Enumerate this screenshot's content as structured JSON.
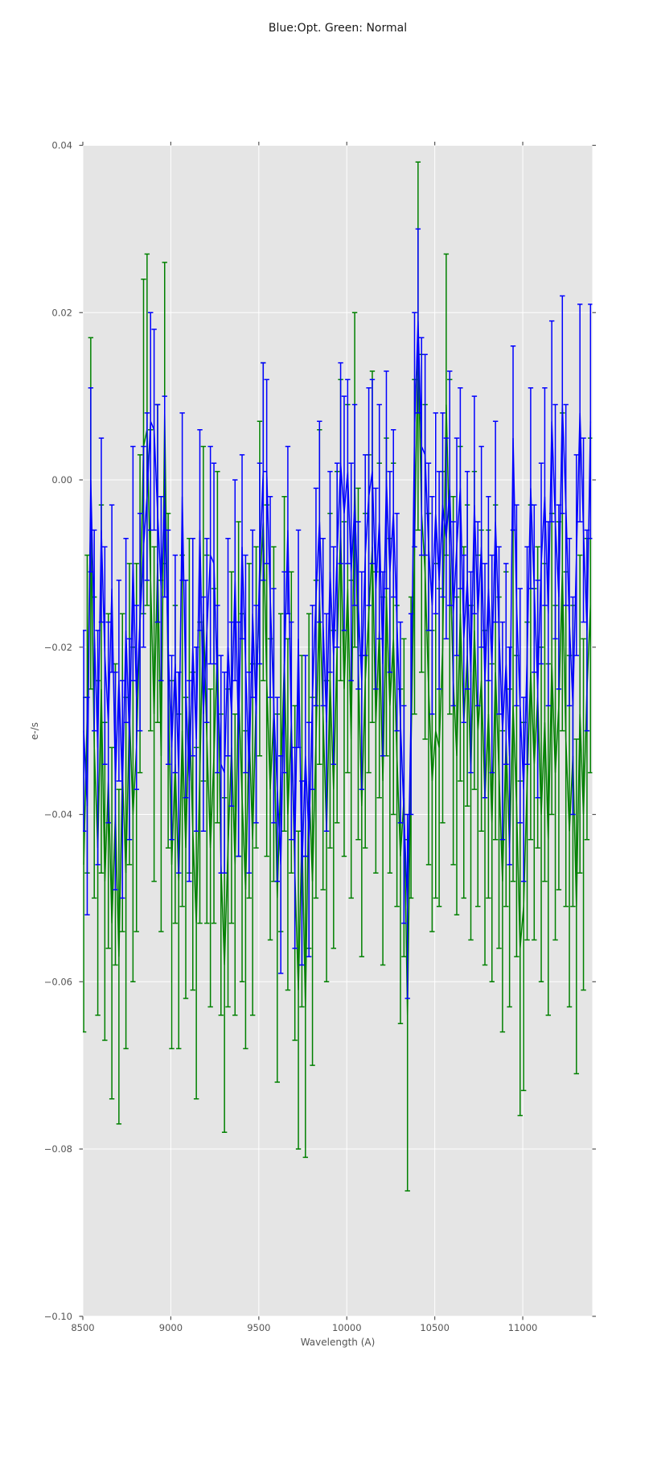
{
  "chart_data": {
    "type": "line",
    "title": "Blue:Opt. Green: Normal",
    "xlabel": "Wavelength (A)",
    "ylabel": "e-/s",
    "xlim": [
      8500,
      11395
    ],
    "ylim": [
      -0.1,
      0.04
    ],
    "x_ticks": [
      8500,
      9000,
      9500,
      10000,
      10500,
      11000
    ],
    "y_ticks": [
      0.04,
      0.02,
      0.0,
      -0.02,
      -0.04,
      -0.06,
      -0.08,
      -0.1
    ],
    "grid": true,
    "legend": "encoded in title",
    "plot_background": "#e5e5e5",
    "grid_color": "#ffffff",
    "tick_color": "#555555",
    "x": [
      8505,
      8525,
      8545,
      8565,
      8585,
      8605,
      8625,
      8645,
      8665,
      8685,
      8705,
      8725,
      8745,
      8765,
      8785,
      8805,
      8825,
      8845,
      8865,
      8885,
      8905,
      8925,
      8945,
      8965,
      8985,
      9005,
      9025,
      9045,
      9065,
      9085,
      9105,
      9125,
      9145,
      9165,
      9185,
      9205,
      9225,
      9245,
      9265,
      9285,
      9305,
      9325,
      9345,
      9365,
      9385,
      9405,
      9425,
      9445,
      9465,
      9485,
      9505,
      9525,
      9545,
      9565,
      9585,
      9605,
      9625,
      9645,
      9665,
      9685,
      9705,
      9725,
      9745,
      9765,
      9785,
      9805,
      9825,
      9845,
      9865,
      9885,
      9905,
      9925,
      9945,
      9965,
      9985,
      10005,
      10025,
      10045,
      10065,
      10085,
      10105,
      10125,
      10145,
      10165,
      10185,
      10205,
      10225,
      10245,
      10265,
      10285,
      10305,
      10325,
      10345,
      10365,
      10385,
      10405,
      10425,
      10445,
      10465,
      10485,
      10505,
      10525,
      10545,
      10565,
      10585,
      10605,
      10625,
      10645,
      10665,
      10685,
      10705,
      10725,
      10745,
      10765,
      10785,
      10805,
      10825,
      10845,
      10865,
      10885,
      10905,
      10925,
      10945,
      10965,
      10985,
      11005,
      11025,
      11045,
      11065,
      11085,
      11105,
      11125,
      11145,
      11165,
      11185,
      11205,
      11225,
      11245,
      11265,
      11285,
      11305,
      11325,
      11345,
      11365,
      11385
    ],
    "series": [
      {
        "name": "Normal",
        "color": "#008000",
        "y": [
          -0.046,
          -0.028,
          -0.004,
          -0.032,
          -0.044,
          -0.025,
          -0.048,
          -0.036,
          -0.053,
          -0.04,
          -0.057,
          -0.035,
          -0.047,
          -0.028,
          -0.04,
          -0.032,
          -0.016,
          0.004,
          0.006,
          -0.012,
          -0.028,
          -0.01,
          -0.033,
          0.008,
          -0.024,
          -0.046,
          -0.034,
          -0.048,
          -0.03,
          -0.044,
          -0.027,
          -0.042,
          -0.053,
          -0.035,
          -0.016,
          -0.031,
          -0.044,
          -0.033,
          -0.02,
          -0.046,
          -0.058,
          -0.044,
          -0.032,
          -0.046,
          -0.025,
          -0.038,
          -0.049,
          -0.03,
          -0.043,
          -0.026,
          -0.013,
          -0.005,
          -0.024,
          -0.037,
          -0.028,
          -0.05,
          -0.035,
          -0.022,
          -0.04,
          -0.029,
          -0.047,
          -0.061,
          -0.042,
          -0.063,
          -0.036,
          -0.048,
          -0.031,
          -0.014,
          -0.028,
          -0.042,
          -0.024,
          -0.037,
          -0.02,
          -0.006,
          -0.025,
          -0.013,
          -0.031,
          0.0,
          -0.022,
          -0.039,
          -0.024,
          -0.016,
          -0.008,
          -0.029,
          -0.018,
          -0.036,
          -0.014,
          -0.027,
          -0.019,
          -0.033,
          -0.045,
          -0.038,
          -0.064,
          -0.032,
          -0.008,
          0.016,
          -0.004,
          -0.011,
          -0.025,
          -0.036,
          -0.03,
          -0.032,
          -0.02,
          0.009,
          -0.008,
          -0.024,
          -0.033,
          -0.016,
          -0.029,
          -0.021,
          -0.035,
          -0.018,
          -0.03,
          -0.024,
          -0.038,
          -0.028,
          -0.041,
          -0.023,
          -0.035,
          -0.048,
          -0.031,
          -0.044,
          -0.027,
          -0.039,
          -0.056,
          -0.051,
          -0.036,
          -0.023,
          -0.034,
          -0.026,
          -0.04,
          -0.029,
          -0.043,
          -0.022,
          -0.035,
          -0.027,
          -0.011,
          -0.031,
          -0.042,
          -0.033,
          -0.051,
          -0.028,
          -0.04,
          -0.025,
          -0.015
        ],
        "yerr": [
          0.02,
          0.019,
          0.021,
          0.018,
          0.02,
          0.022,
          0.019,
          0.02,
          0.021,
          0.018,
          0.02,
          0.019,
          0.021,
          0.018,
          0.02,
          0.022,
          0.019,
          0.02,
          0.021,
          0.018,
          0.02,
          0.019,
          0.021,
          0.018,
          0.02,
          0.022,
          0.019,
          0.02,
          0.021,
          0.018,
          0.02,
          0.019,
          0.021,
          0.018,
          0.02,
          0.022,
          0.019,
          0.02,
          0.021,
          0.018,
          0.02,
          0.019,
          0.021,
          0.018,
          0.02,
          0.022,
          0.019,
          0.02,
          0.021,
          0.018,
          0.02,
          0.019,
          0.021,
          0.018,
          0.02,
          0.022,
          0.019,
          0.02,
          0.021,
          0.018,
          0.02,
          0.019,
          0.021,
          0.018,
          0.02,
          0.022,
          0.019,
          0.02,
          0.021,
          0.018,
          0.02,
          0.019,
          0.021,
          0.018,
          0.02,
          0.022,
          0.019,
          0.02,
          0.021,
          0.018,
          0.02,
          0.019,
          0.021,
          0.018,
          0.02,
          0.022,
          0.019,
          0.02,
          0.021,
          0.018,
          0.02,
          0.019,
          0.021,
          0.018,
          0.02,
          0.022,
          0.019,
          0.02,
          0.021,
          0.018,
          0.02,
          0.019,
          0.021,
          0.018,
          0.02,
          0.022,
          0.019,
          0.02,
          0.021,
          0.018,
          0.02,
          0.019,
          0.021,
          0.018,
          0.02,
          0.022,
          0.019,
          0.02,
          0.021,
          0.018,
          0.02,
          0.019,
          0.021,
          0.018,
          0.02,
          0.022,
          0.019,
          0.02,
          0.021,
          0.018,
          0.02,
          0.019,
          0.021,
          0.018,
          0.02,
          0.022,
          0.019,
          0.02,
          0.021,
          0.018,
          0.02,
          0.019,
          0.021,
          0.018,
          0.02
        ]
      },
      {
        "name": "Opt",
        "color": "#0000ff",
        "y": [
          -0.03,
          -0.039,
          0.0,
          -0.018,
          -0.032,
          -0.006,
          -0.021,
          -0.029,
          -0.013,
          -0.036,
          -0.024,
          -0.037,
          -0.018,
          -0.031,
          -0.01,
          -0.026,
          -0.017,
          -0.008,
          -0.002,
          0.007,
          0.006,
          -0.004,
          -0.013,
          -0.002,
          -0.02,
          -0.032,
          -0.022,
          -0.035,
          -0.002,
          -0.025,
          -0.036,
          -0.02,
          -0.031,
          -0.006,
          -0.028,
          -0.018,
          -0.009,
          -0.01,
          -0.025,
          -0.034,
          -0.035,
          -0.02,
          -0.028,
          -0.012,
          -0.031,
          -0.008,
          -0.022,
          -0.035,
          -0.016,
          -0.028,
          -0.01,
          0.001,
          0.001,
          -0.014,
          -0.027,
          -0.037,
          -0.046,
          -0.023,
          -0.006,
          -0.03,
          -0.044,
          -0.019,
          -0.047,
          -0.033,
          -0.043,
          -0.026,
          -0.014,
          -0.005,
          -0.017,
          -0.029,
          -0.011,
          -0.021,
          -0.009,
          0.002,
          -0.004,
          0.001,
          -0.011,
          -0.003,
          -0.015,
          -0.024,
          -0.009,
          -0.002,
          0.001,
          -0.013,
          -0.005,
          -0.022,
          0.0,
          -0.011,
          -0.004,
          -0.017,
          -0.029,
          -0.04,
          -0.051,
          -0.028,
          0.006,
          0.019,
          0.004,
          0.003,
          -0.008,
          -0.015,
          -0.004,
          -0.012,
          -0.003,
          -0.007,
          -0.001,
          -0.016,
          -0.008,
          -0.001,
          -0.019,
          -0.012,
          -0.023,
          -0.003,
          -0.016,
          -0.008,
          -0.024,
          -0.013,
          -0.022,
          -0.005,
          -0.018,
          -0.03,
          -0.022,
          -0.033,
          0.005,
          -0.015,
          -0.027,
          -0.037,
          -0.021,
          -0.001,
          -0.013,
          -0.025,
          -0.01,
          -0.002,
          -0.016,
          0.007,
          -0.005,
          -0.014,
          0.009,
          -0.003,
          -0.017,
          -0.027,
          -0.009,
          0.008,
          -0.006,
          -0.018,
          0.007
        ],
        "yerr": [
          0.012,
          0.013,
          0.011,
          0.012,
          0.014,
          0.011,
          0.013,
          0.012,
          0.01,
          0.013,
          0.012,
          0.013,
          0.011,
          0.012,
          0.014,
          0.011,
          0.013,
          0.012,
          0.01,
          0.013,
          0.012,
          0.013,
          0.011,
          0.012,
          0.014,
          0.011,
          0.013,
          0.012,
          0.01,
          0.013,
          0.012,
          0.013,
          0.011,
          0.012,
          0.014,
          0.011,
          0.013,
          0.012,
          0.01,
          0.013,
          0.012,
          0.013,
          0.011,
          0.012,
          0.014,
          0.011,
          0.013,
          0.012,
          0.01,
          0.013,
          0.012,
          0.013,
          0.011,
          0.012,
          0.014,
          0.011,
          0.013,
          0.012,
          0.01,
          0.013,
          0.012,
          0.013,
          0.011,
          0.012,
          0.014,
          0.011,
          0.013,
          0.012,
          0.01,
          0.013,
          0.012,
          0.013,
          0.011,
          0.012,
          0.014,
          0.011,
          0.013,
          0.012,
          0.01,
          0.013,
          0.012,
          0.013,
          0.011,
          0.012,
          0.014,
          0.011,
          0.013,
          0.012,
          0.01,
          0.013,
          0.012,
          0.013,
          0.011,
          0.012,
          0.014,
          0.011,
          0.013,
          0.012,
          0.01,
          0.013,
          0.012,
          0.013,
          0.011,
          0.012,
          0.014,
          0.011,
          0.013,
          0.012,
          0.01,
          0.013,
          0.012,
          0.013,
          0.011,
          0.012,
          0.014,
          0.011,
          0.013,
          0.012,
          0.01,
          0.013,
          0.012,
          0.013,
          0.011,
          0.012,
          0.014,
          0.011,
          0.013,
          0.012,
          0.01,
          0.013,
          0.012,
          0.013,
          0.011,
          0.012,
          0.014,
          0.011,
          0.013,
          0.012,
          0.01,
          0.013,
          0.012,
          0.013,
          0.011,
          0.012,
          0.014
        ]
      }
    ]
  }
}
